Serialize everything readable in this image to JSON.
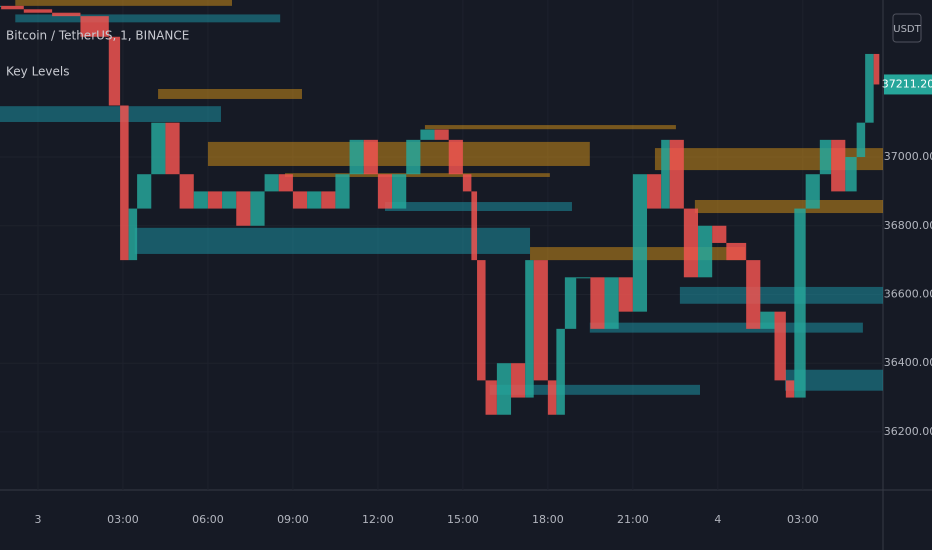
{
  "chart_data": {
    "type": "candles",
    "title": "Bitcoin / TetherUS, 1, BINANCE",
    "indicator": "Key Levels",
    "currency": "USDT",
    "last_price": {
      "value": 37211.2,
      "label": "37211.20"
    },
    "up_color": "#26a69a",
    "down_color": "#ef5350",
    "x": [
      -1.3,
      -0.5,
      0.5,
      1.5,
      2.5,
      2.9,
      3.2,
      3.5,
      4.0,
      4.5,
      5.0,
      5.5,
      6.0,
      6.5,
      7.0,
      7.5,
      8.0,
      8.5,
      9.0,
      9.5,
      10.0,
      10.5,
      11.0,
      11.5,
      12.0,
      12.5,
      13.0,
      13.5,
      14.0,
      14.5,
      15.0,
      15.3,
      15.5,
      15.8,
      16.2,
      16.7,
      17.2,
      17.5,
      18.0,
      18.3,
      18.6,
      19.0,
      19.5,
      20.0,
      20.5,
      21.0,
      21.5,
      22.0,
      22.3,
      22.8,
      23.3,
      23.8,
      24.3,
      25.0,
      25.5,
      26.0,
      26.4,
      26.7,
      27.1,
      27.6,
      28.0,
      28.5,
      28.9,
      29.2,
      29.5,
      29.7
    ],
    "values": [
      37440,
      37430,
      37420,
      37410,
      37350,
      37150,
      36700,
      36850,
      36950,
      37100,
      36950,
      36850,
      36900,
      36850,
      36900,
      36800,
      36900,
      36950,
      36900,
      36850,
      36900,
      36850,
      36950,
      37050,
      36950,
      36850,
      36950,
      37050,
      37080,
      37050,
      36950,
      36900,
      36700,
      36350,
      36250,
      36400,
      36300,
      36700,
      36350,
      36250,
      36500,
      36650,
      36650,
      36500,
      36650,
      36550,
      36950,
      36850,
      37050,
      36850,
      36650,
      36800,
      36750,
      36700,
      36500,
      36550,
      36350,
      36300,
      36850,
      36950,
      37050,
      36900,
      37000,
      37100,
      37300,
      37211.2
    ],
    "zones": [
      {
        "start": -0.8,
        "end": 6.85,
        "top": 37457,
        "bottom": 37440,
        "color": "#c88a1a"
      },
      {
        "start": -0.8,
        "end": 8.55,
        "top": 37415,
        "bottom": 37392,
        "color": "#1d8fa0"
      },
      {
        "start": 4.24,
        "end": 9.32,
        "top": 37198,
        "bottom": 37169,
        "color": "#c88a1a"
      },
      {
        "start": -1.34,
        "end": 6.46,
        "top": 37148,
        "bottom": 37102,
        "color": "#1d8fa0"
      },
      {
        "start": 6.0,
        "end": 19.48,
        "top": 37044,
        "bottom": 36974,
        "color": "#c88a1a"
      },
      {
        "start": 13.66,
        "end": 22.52,
        "top": 37093,
        "bottom": 37081,
        "color": "#c88a1a"
      },
      {
        "start": 8.72,
        "end": 18.07,
        "top": 36953,
        "bottom": 36942,
        "color": "#c88a1a"
      },
      {
        "start": 12.25,
        "end": 18.85,
        "top": 36869,
        "bottom": 36843,
        "color": "#1d8fa0"
      },
      {
        "start": 3.42,
        "end": 17.37,
        "top": 36794,
        "bottom": 36718,
        "color": "#1d8fa0"
      },
      {
        "start": 21.78,
        "end": 29.83,
        "top": 37026,
        "bottom": 36962,
        "color": "#c88a1a"
      },
      {
        "start": 23.19,
        "end": 29.83,
        "top": 36875,
        "bottom": 36837,
        "color": "#c88a1a"
      },
      {
        "start": 17.37,
        "end": 24.96,
        "top": 36738,
        "bottom": 36700,
        "color": "#c88a1a"
      },
      {
        "start": 22.66,
        "end": 29.83,
        "top": 36622,
        "bottom": 36573,
        "color": "#1d8fa0"
      },
      {
        "start": 19.48,
        "end": 29.12,
        "top": 36518,
        "bottom": 36489,
        "color": "#1d8fa0"
      },
      {
        "start": 15.95,
        "end": 23.37,
        "top": 36337,
        "bottom": 36308,
        "color": "#1d8fa0"
      },
      {
        "start": 26.37,
        "end": 29.83,
        "top": 36381,
        "bottom": 36320,
        "color": "#1d8fa0"
      }
    ],
    "xlim": [
      -1.34,
      29.83
    ],
    "ylim": [
      36031,
      37457
    ],
    "xticks": [
      {
        "value": 0,
        "label": "3"
      },
      {
        "value": 3,
        "label": "03:00"
      },
      {
        "value": 6,
        "label": "06:00"
      },
      {
        "value": 9,
        "label": "09:00"
      },
      {
        "value": 12,
        "label": "12:00"
      },
      {
        "value": 15,
        "label": "15:00"
      },
      {
        "value": 18,
        "label": "18:00"
      },
      {
        "value": 21,
        "label": "21:00"
      },
      {
        "value": 24,
        "label": "4"
      },
      {
        "value": 27,
        "label": "03:00"
      }
    ],
    "yticks": [
      {
        "value": 36200,
        "label": "36200.00"
      },
      {
        "value": 36400,
        "label": "36400.00"
      },
      {
        "value": 36600,
        "label": "36600.00"
      },
      {
        "value": 36800,
        "label": "36800.00"
      },
      {
        "value": 37000,
        "label": "37000.00"
      }
    ]
  }
}
